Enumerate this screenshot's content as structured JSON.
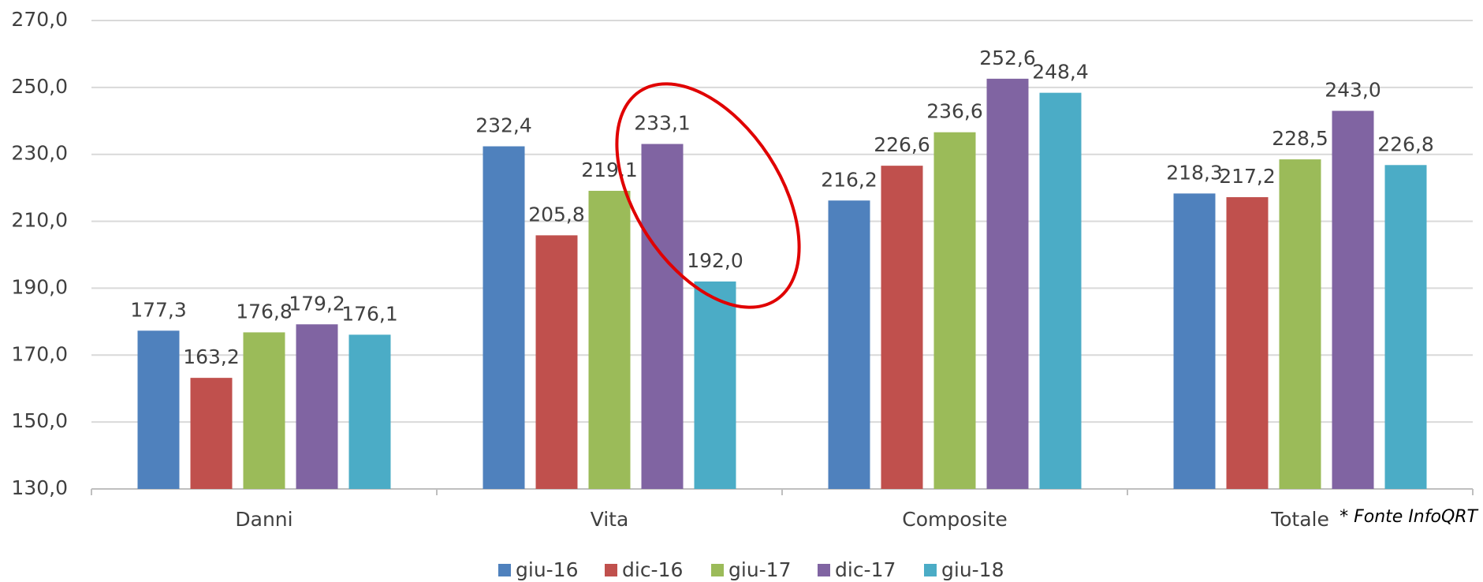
{
  "chart_data": {
    "type": "bar",
    "categories": [
      "Danni",
      "Vita",
      "Composite",
      "Totale"
    ],
    "series": [
      {
        "name": "giu-16",
        "color": "#4f81bd",
        "values": [
          177.3,
          232.4,
          216.2,
          218.3
        ],
        "value_labels": [
          "177,3",
          "232,4",
          "216,2",
          "218,3"
        ]
      },
      {
        "name": "dic-16",
        "color": "#c0504d",
        "values": [
          163.2,
          205.8,
          226.6,
          217.2
        ],
        "value_labels": [
          "163,2",
          "205,8",
          "226,6",
          "217,2"
        ]
      },
      {
        "name": "giu-17",
        "color": "#9bbb59",
        "values": [
          176.8,
          219.1,
          236.6,
          228.5
        ],
        "value_labels": [
          "176,8",
          "219,1",
          "236,6",
          "228,5"
        ]
      },
      {
        "name": "dic-17",
        "color": "#8064a2",
        "values": [
          179.2,
          233.1,
          252.6,
          243.0
        ],
        "value_labels": [
          "179,2",
          "233,1",
          "252,6",
          "243,0"
        ]
      },
      {
        "name": "giu-18",
        "color": "#4bacc6",
        "values": [
          176.1,
          192.0,
          248.4,
          226.8
        ],
        "value_labels": [
          "176,1",
          "192,0",
          "248,4",
          "226,8"
        ]
      }
    ],
    "ylim": [
      130,
      270
    ],
    "yticks": [
      {
        "value": 130,
        "label": "130,0"
      },
      {
        "value": 150,
        "label": "150,0"
      },
      {
        "value": 170,
        "label": "170,0"
      },
      {
        "value": 190,
        "label": "190,0"
      },
      {
        "value": 210,
        "label": "210,0"
      },
      {
        "value": 230,
        "label": "230,0"
      },
      {
        "value": 250,
        "label": "250,0"
      },
      {
        "value": 270,
        "label": "270,0"
      }
    ],
    "grid": true,
    "legend": "bottom",
    "footnote": "* Fonte InfoQRT"
  }
}
